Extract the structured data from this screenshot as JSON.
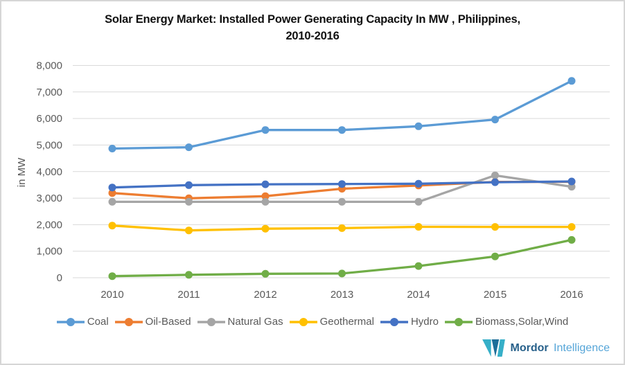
{
  "title": {
    "line1": "Solar Energy Market: Installed Power Generating Capacity In MW , Philippines,",
    "line2": "2010-2016"
  },
  "chart_data": {
    "type": "line",
    "title": "Solar Energy Market: Installed Power Generating Capacity In MW , Philippines, 2010-2016",
    "xlabel": "",
    "ylabel": "in MW",
    "categories": [
      "2010",
      "2011",
      "2012",
      "2013",
      "2014",
      "2015",
      "2016"
    ],
    "series": [
      {
        "name": "Coal",
        "color": "#5B9BD5",
        "values": [
          4867,
          4917,
          5568,
          5568,
          5708,
          5963,
          7419
        ]
      },
      {
        "name": "Oil-Based",
        "color": "#ED7D31",
        "values": [
          3193,
          2994,
          3074,
          3353,
          3476,
          3610,
          3616
        ]
      },
      {
        "name": "Natural Gas",
        "color": "#A5A5A5",
        "values": [
          2861,
          2861,
          2862,
          2862,
          2862,
          3857,
          3431
        ]
      },
      {
        "name": "Geothermal",
        "color": "#FFC000",
        "values": [
          1966,
          1783,
          1848,
          1868,
          1918,
          1917,
          1916
        ]
      },
      {
        "name": "Hydro",
        "color": "#4472C4",
        "values": [
          3400,
          3491,
          3521,
          3531,
          3543,
          3600,
          3627
        ]
      },
      {
        "name": "Biomass,Solar,Wind",
        "color": "#70AD47",
        "values": [
          60,
          110,
          150,
          160,
          440,
          803,
          1425
        ]
      }
    ],
    "ylim": [
      0,
      8000
    ],
    "ytick_step": 1000,
    "ytick_labels": [
      "0",
      "1,000",
      "2,000",
      "3,000",
      "4,000",
      "5,000",
      "6,000",
      "7,000",
      "8,000"
    ],
    "grid": true,
    "legend_position": "bottom",
    "colors": {
      "gridline": "#D9D9D9",
      "axis_text": "#595959",
      "title_text": "#111111",
      "background": "#FFFFFF"
    }
  },
  "branding": {
    "name_bold": "Mordor",
    "name_light": "Intelligence",
    "logo_teal": "#36AFC8",
    "logo_navy": "#1C6E99"
  }
}
